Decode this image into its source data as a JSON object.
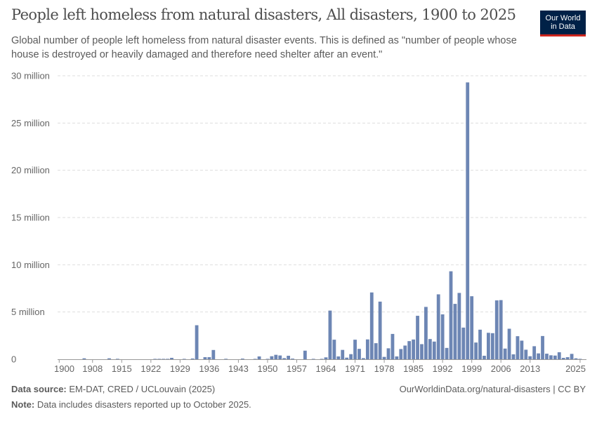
{
  "header": {
    "title": "People left homeless from natural disasters, All disasters, 1900 to 2025",
    "subtitle": "Global number of people left homeless from natural disaster events. This is defined as \"number of people whose house is destroyed or heavily damaged and therefore need shelter after an event.\"",
    "logo_line1": "Our World",
    "logo_line2": "in Data"
  },
  "footer": {
    "source_label": "Data source:",
    "source_text": "EM-DAT, CRED / UCLouvain (2025)",
    "note_label": "Note:",
    "note_text": "Data includes disasters reported up to October 2025.",
    "url": "OurWorldinData.org/natural-disasters | CC BY"
  },
  "colors": {
    "bar": "#6d86b4",
    "logo_bg": "#002147",
    "logo_accent": "#ce261e"
  },
  "chart_data": {
    "type": "bar",
    "title": "People left homeless from natural disasters, All disasters, 1900 to 2025",
    "unit": "people",
    "ylim": [
      0,
      30000000
    ],
    "yticks": [
      0,
      5000000,
      10000000,
      15000000,
      20000000,
      25000000,
      30000000
    ],
    "ytick_labels": [
      "0",
      "5 million",
      "10 million",
      "15 million",
      "20 million",
      "25 million",
      "30 million"
    ],
    "xticks": [
      1900,
      1908,
      1915,
      1922,
      1929,
      1936,
      1943,
      1950,
      1957,
      1964,
      1971,
      1978,
      1985,
      1992,
      1999,
      2006,
      2013,
      2025
    ],
    "grid": "horizontal dashed",
    "x": [
      1906,
      1912,
      1914,
      1923,
      1924,
      1925,
      1926,
      1927,
      1930,
      1932,
      1933,
      1935,
      1936,
      1937,
      1940,
      1944,
      1947,
      1948,
      1950,
      1951,
      1952,
      1953,
      1954,
      1955,
      1956,
      1959,
      1961,
      1963,
      1964,
      1965,
      1966,
      1967,
      1968,
      1969,
      1970,
      1971,
      1972,
      1973,
      1974,
      1975,
      1976,
      1977,
      1978,
      1979,
      1980,
      1981,
      1982,
      1983,
      1984,
      1985,
      1986,
      1987,
      1988,
      1989,
      1990,
      1991,
      1992,
      1993,
      1994,
      1995,
      1996,
      1997,
      1998,
      1999,
      2000,
      2001,
      2002,
      2003,
      2004,
      2005,
      2006,
      2007,
      2008,
      2009,
      2010,
      2011,
      2012,
      2013,
      2014,
      2015,
      2016,
      2017,
      2018,
      2019,
      2020,
      2021,
      2022,
      2023,
      2024,
      2025
    ],
    "values": [
      100000,
      100000,
      50000,
      20000,
      20000,
      20000,
      20000,
      150000,
      30000,
      80000,
      3600000,
      220000,
      220000,
      980000,
      50000,
      70000,
      30000,
      300000,
      30000,
      320000,
      470000,
      400000,
      120000,
      370000,
      70000,
      910000,
      30000,
      40000,
      200000,
      5150000,
      2070000,
      300000,
      990000,
      170000,
      540000,
      2070000,
      1100000,
      120000,
      2100000,
      7070000,
      1700000,
      6100000,
      250000,
      1160000,
      2680000,
      300000,
      1080000,
      1450000,
      1920000,
      2090000,
      4600000,
      1600000,
      5540000,
      2140000,
      1870000,
      6870000,
      4750000,
      1200000,
      9310000,
      5860000,
      7020000,
      3350000,
      29300000,
      6670000,
      1770000,
      3130000,
      370000,
      2800000,
      2760000,
      6230000,
      6260000,
      1130000,
      3230000,
      520000,
      2440000,
      1970000,
      1010000,
      320000,
      1380000,
      620000,
      2460000,
      590000,
      420000,
      390000,
      740000,
      150000,
      220000,
      570000,
      100000,
      20000
    ]
  }
}
